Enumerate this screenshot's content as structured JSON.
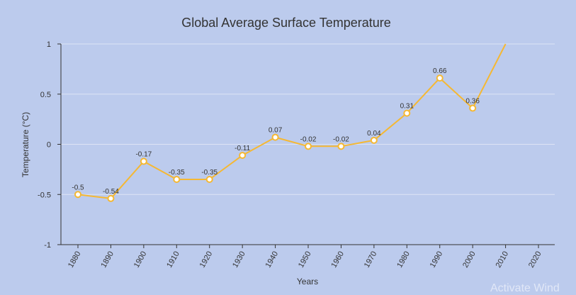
{
  "colors": {
    "background": "#bccbed",
    "line": "#f5b833",
    "marker_fill": "#ffffff",
    "gridline": "#dde4f5",
    "axis": "#333333"
  },
  "watermark": "Activate Wind",
  "chart_data": {
    "type": "line",
    "title": "Global Average Surface Temperature",
    "xlabel": "Years",
    "ylabel": "Temperature (°C)",
    "x": [
      1880,
      1890,
      1900,
      1910,
      1920,
      1930,
      1940,
      1950,
      1960,
      1970,
      1980,
      1990,
      2000,
      2010,
      2020
    ],
    "xtick_labels": [
      "1880",
      "1890",
      "1900",
      "1910",
      "1920",
      "1930",
      "1940",
      "1950",
      "1960",
      "1970",
      "1980",
      "1990",
      "2000",
      "2010",
      "2020"
    ],
    "ylim": [
      -1,
      1
    ],
    "yticks": [
      -1,
      -0.5,
      0,
      0.5,
      1
    ],
    "ytick_labels": [
      "-1",
      "-0.5",
      "0",
      "0.5",
      "1"
    ],
    "series": [
      {
        "x": [
          1880,
          1890,
          1900,
          1910,
          1920,
          1930,
          1940,
          1950,
          1960,
          1970,
          1980,
          1990,
          2000,
          2010
        ],
        "values": [
          -0.5,
          -0.54,
          -0.17,
          -0.35,
          -0.35,
          -0.11,
          0.07,
          -0.02,
          -0.02,
          0.04,
          0.31,
          0.66,
          0.36,
          1.0
        ],
        "data_labels": [
          "-0.5",
          "-0.54",
          "-0.17",
          "-0.35",
          "-0.35",
          "-0.11",
          "0.07",
          "-0.02",
          "-0.02",
          "0.04",
          "0.31",
          "0.66",
          "0.36",
          ""
        ]
      }
    ],
    "grid": true,
    "legend": "none"
  }
}
